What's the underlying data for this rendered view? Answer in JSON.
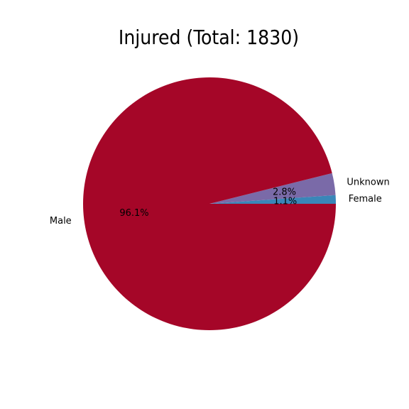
{
  "chart_data": {
    "type": "pie",
    "title": "Injured (Total: 1830)",
    "slices": [
      {
        "label": "Female",
        "value": 1.1,
        "pct_label": "1.1%",
        "color": "#3a86b8"
      },
      {
        "label": "Unknown",
        "value": 2.8,
        "pct_label": "2.8%",
        "color": "#7a6aa8"
      },
      {
        "label": "Male",
        "value": 96.1,
        "pct_label": "96.1%",
        "color": "#a50628"
      }
    ],
    "start_angle_deg": 0,
    "direction": "counterclockwise"
  }
}
